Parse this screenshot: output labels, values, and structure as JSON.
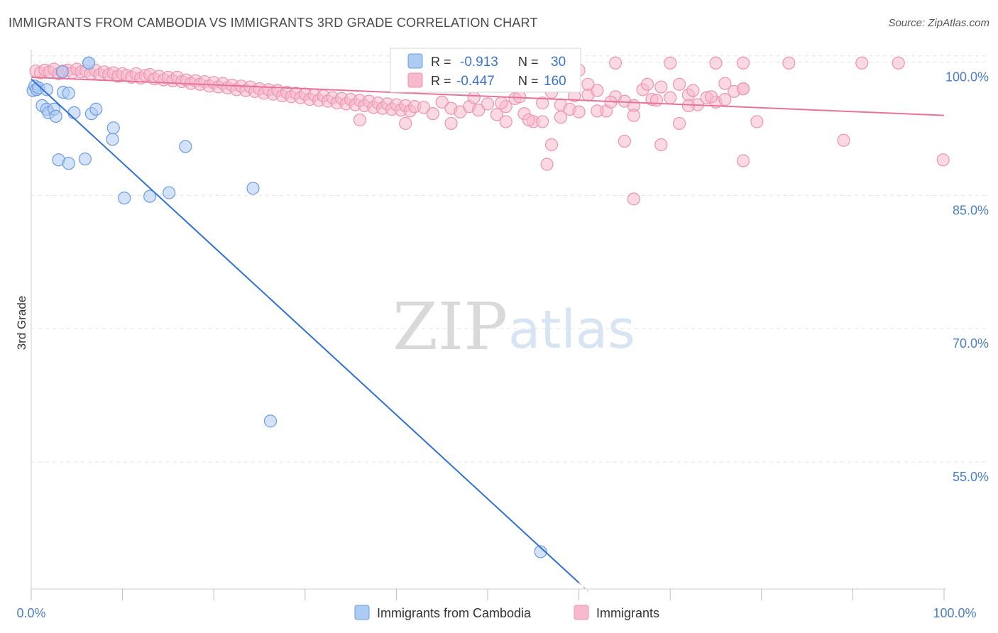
{
  "title": "IMMIGRANTS FROM CAMBODIA VS IMMIGRANTS 3RD GRADE CORRELATION CHART",
  "source": "Source: ZipAtlas.com",
  "watermark": {
    "zip": "ZIP",
    "atlas": "atlas"
  },
  "colors": {
    "blue_fill": "#aecbf3",
    "blue_stroke": "#6c9de0",
    "blue_line": "#2f70d6",
    "pink_fill": "#f7b9cc",
    "pink_stroke": "#eb93b0",
    "pink_line": "#e8739a",
    "grid": "#e3e3e3",
    "tick_label": "#4a7fc8"
  },
  "legend": {
    "rows": [
      {
        "r_label": "R =",
        "r_value": "-0.913",
        "n_label": "N =",
        "n_value": "30"
      },
      {
        "r_label": "R =",
        "r_value": "-0.447",
        "n_label": "N =",
        "n_value": "160"
      }
    ]
  },
  "bottom_legend": [
    {
      "label": "Immigrants from Cambodia"
    },
    {
      "label": "Immigrants"
    }
  ],
  "chart_data": {
    "type": "scatter",
    "title": "IMMIGRANTS FROM CAMBODIA VS IMMIGRANTS 3RD GRADE CORRELATION CHART",
    "xlabel": "",
    "ylabel": "3rd Grade",
    "xlim": [
      0,
      100
    ],
    "ylim": [
      40.7,
      101.4
    ],
    "x_tick_labels": [
      "0.0%",
      "100.0%"
    ],
    "y_ticks": [
      {
        "value": 100,
        "label": "100.0%"
      },
      {
        "value": 85,
        "label": "85.0%"
      },
      {
        "value": 70,
        "label": "70.0%"
      },
      {
        "value": 55,
        "label": "55.0%"
      }
    ],
    "grid": true,
    "series": [
      {
        "name": "Immigrants from Cambodia",
        "r": -0.913,
        "n": 30,
        "trend": {
          "x0": 0.0,
          "y0": 98.1,
          "x1": 60.0,
          "y1": 41.4,
          "dash_to_x": 61.0
        },
        "points": [
          [
            0.2,
            96.8
          ],
          [
            0.4,
            97.3
          ],
          [
            0.6,
            96.9
          ],
          [
            0.8,
            97.1
          ],
          [
            1.7,
            96.9
          ],
          [
            6.3,
            99.9
          ],
          [
            6.3,
            99.9
          ],
          [
            3.4,
            98.9
          ],
          [
            1.2,
            95.1
          ],
          [
            1.7,
            94.7
          ],
          [
            1.9,
            94.3
          ],
          [
            2.5,
            94.7
          ],
          [
            2.7,
            93.9
          ],
          [
            3.5,
            96.6
          ],
          [
            4.1,
            96.5
          ],
          [
            4.7,
            94.3
          ],
          [
            6.6,
            94.2
          ],
          [
            7.1,
            94.7
          ],
          [
            9.0,
            92.6
          ],
          [
            8.9,
            91.3
          ],
          [
            3.0,
            89.0
          ],
          [
            4.1,
            88.6
          ],
          [
            5.9,
            89.1
          ],
          [
            16.9,
            90.5
          ],
          [
            10.2,
            84.7
          ],
          [
            13.0,
            84.9
          ],
          [
            15.1,
            85.3
          ],
          [
            24.3,
            85.8
          ],
          [
            26.2,
            59.6
          ],
          [
            55.8,
            44.9
          ]
        ]
      },
      {
        "name": "Immigrants",
        "r": -0.447,
        "n": 160,
        "trend": {
          "x0": 0.0,
          "y0": 98.3,
          "x1": 100.0,
          "y1": 94.0
        },
        "points": [
          [
            0.5,
            99.0
          ],
          [
            1.0,
            98.8
          ],
          [
            1.5,
            99.1
          ],
          [
            2.0,
            98.9
          ],
          [
            2.5,
            99.2
          ],
          [
            3.0,
            98.7
          ],
          [
            3.5,
            99.0
          ],
          [
            4.0,
            99.1
          ],
          [
            4.5,
            98.8
          ],
          [
            5.0,
            99.2
          ],
          [
            5.5,
            98.9
          ],
          [
            6.0,
            99.0
          ],
          [
            6.5,
            98.7
          ],
          [
            7.0,
            99.1
          ],
          [
            7.5,
            98.6
          ],
          [
            8.0,
            98.9
          ],
          [
            8.5,
            98.6
          ],
          [
            9.0,
            98.8
          ],
          [
            9.5,
            98.4
          ],
          [
            10.0,
            98.7
          ],
          [
            10.5,
            98.5
          ],
          [
            11.0,
            98.3
          ],
          [
            11.5,
            98.7
          ],
          [
            12.0,
            98.2
          ],
          [
            12.5,
            98.5
          ],
          [
            13.0,
            98.6
          ],
          [
            13.5,
            98.1
          ],
          [
            14.0,
            98.4
          ],
          [
            14.5,
            98.0
          ],
          [
            15.0,
            98.3
          ],
          [
            15.5,
            97.9
          ],
          [
            16.0,
            98.3
          ],
          [
            16.5,
            97.8
          ],
          [
            17.0,
            98.0
          ],
          [
            17.5,
            97.6
          ],
          [
            18.0,
            97.9
          ],
          [
            18.5,
            97.5
          ],
          [
            19.0,
            97.8
          ],
          [
            19.5,
            97.3
          ],
          [
            20.0,
            97.7
          ],
          [
            20.5,
            97.2
          ],
          [
            21.0,
            97.6
          ],
          [
            21.5,
            97.1
          ],
          [
            22.0,
            97.4
          ],
          [
            22.5,
            96.9
          ],
          [
            23.0,
            97.3
          ],
          [
            23.5,
            96.8
          ],
          [
            24.0,
            97.2
          ],
          [
            24.5,
            96.7
          ],
          [
            25.0,
            97.0
          ],
          [
            25.5,
            96.5
          ],
          [
            26.0,
            96.9
          ],
          [
            26.5,
            96.4
          ],
          [
            27.0,
            96.8
          ],
          [
            27.5,
            96.2
          ],
          [
            28.0,
            96.6
          ],
          [
            28.5,
            96.1
          ],
          [
            29.0,
            96.5
          ],
          [
            29.5,
            96.0
          ],
          [
            30.0,
            96.4
          ],
          [
            30.5,
            95.8
          ],
          [
            31.0,
            96.3
          ],
          [
            31.5,
            95.7
          ],
          [
            32.0,
            96.2
          ],
          [
            32.5,
            95.6
          ],
          [
            33.0,
            96.0
          ],
          [
            33.5,
            95.4
          ],
          [
            34.0,
            95.9
          ],
          [
            34.5,
            95.3
          ],
          [
            35.0,
            95.8
          ],
          [
            35.5,
            95.2
          ],
          [
            36.0,
            95.7
          ],
          [
            36.5,
            95.1
          ],
          [
            37.0,
            95.6
          ],
          [
            37.5,
            94.9
          ],
          [
            38.0,
            95.4
          ],
          [
            38.5,
            94.8
          ],
          [
            39.0,
            95.3
          ],
          [
            39.5,
            94.7
          ],
          [
            40.0,
            95.2
          ],
          [
            40.5,
            94.6
          ],
          [
            41.0,
            95.1
          ],
          [
            41.5,
            94.5
          ],
          [
            42.0,
            95.0
          ],
          [
            43.0,
            94.9
          ],
          [
            44.0,
            94.2
          ],
          [
            45.0,
            95.5
          ],
          [
            46.0,
            94.8
          ],
          [
            47.0,
            94.4
          ],
          [
            48.0,
            95.0
          ],
          [
            49.0,
            94.6
          ],
          [
            50.0,
            95.3
          ],
          [
            51.0,
            94.1
          ],
          [
            52.0,
            95.0
          ],
          [
            53.0,
            95.9
          ],
          [
            54.0,
            94.2
          ],
          [
            55.0,
            93.3
          ],
          [
            56.0,
            95.4
          ],
          [
            57.0,
            96.6
          ],
          [
            58.0,
            95.2
          ],
          [
            59.0,
            94.7
          ],
          [
            60.0,
            94.4
          ],
          [
            61.0,
            96.3
          ],
          [
            62.0,
            96.8
          ],
          [
            63.0,
            94.5
          ],
          [
            64.0,
            96.1
          ],
          [
            65.0,
            95.6
          ],
          [
            66.0,
            95.1
          ],
          [
            67.0,
            96.9
          ],
          [
            68.0,
            95.8
          ],
          [
            69.0,
            97.2
          ],
          [
            70.0,
            96.0
          ],
          [
            71.0,
            97.5
          ],
          [
            72.0,
            96.3
          ],
          [
            73.0,
            95.2
          ],
          [
            74.0,
            96.0
          ],
          [
            75.0,
            95.5
          ],
          [
            76.0,
            95.8
          ],
          [
            77.0,
            96.7
          ],
          [
            78.0,
            97.0
          ],
          [
            52.0,
            93.3
          ],
          [
            54.5,
            93.5
          ],
          [
            58.0,
            93.8
          ],
          [
            62.0,
            94.5
          ],
          [
            66.0,
            94.0
          ],
          [
            36.0,
            93.5
          ],
          [
            41.0,
            93.1
          ],
          [
            46.0,
            93.1
          ],
          [
            56.0,
            93.3
          ],
          [
            71.0,
            93.1
          ],
          [
            57.0,
            90.7
          ],
          [
            65.0,
            91.1
          ],
          [
            69.0,
            90.7
          ],
          [
            78.0,
            97.0
          ],
          [
            79.5,
            93.3
          ],
          [
            64.0,
            99.9
          ],
          [
            70.0,
            99.9
          ],
          [
            75.0,
            99.9
          ],
          [
            78.0,
            99.9
          ],
          [
            83.0,
            99.9
          ],
          [
            91.0,
            99.9
          ],
          [
            95.0,
            99.9
          ],
          [
            60.0,
            99.1
          ],
          [
            61.0,
            97.5
          ],
          [
            66.0,
            84.6
          ],
          [
            56.5,
            88.5
          ],
          [
            78.0,
            88.9
          ],
          [
            89.0,
            91.2
          ],
          [
            99.9,
            89.0
          ],
          [
            72.5,
            96.8
          ],
          [
            74.5,
            96.1
          ],
          [
            76.0,
            97.6
          ],
          [
            51.5,
            95.4
          ],
          [
            53.5,
            96.1
          ],
          [
            59.5,
            96.2
          ],
          [
            63.5,
            95.5
          ],
          [
            67.5,
            97.5
          ],
          [
            68.5,
            95.7
          ],
          [
            72.0,
            95.1
          ],
          [
            48.5,
            96.0
          ]
        ]
      }
    ]
  }
}
